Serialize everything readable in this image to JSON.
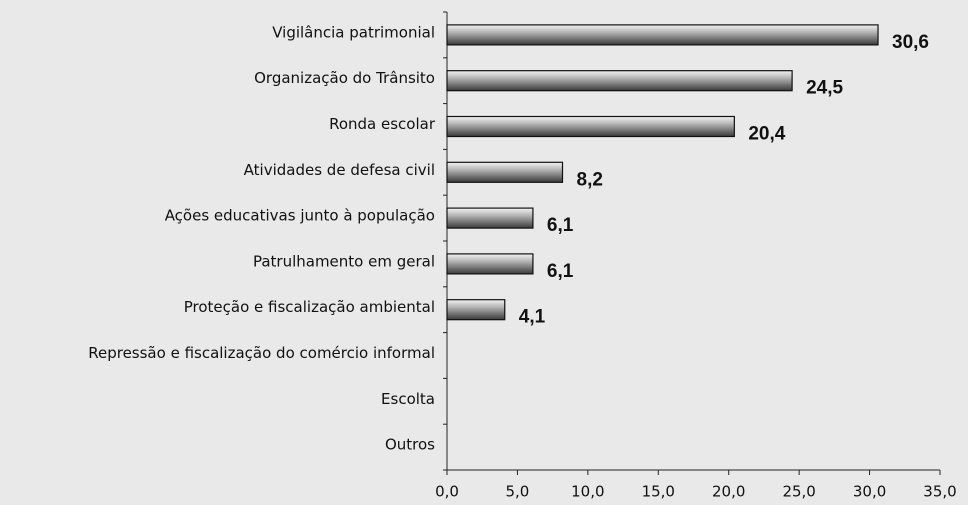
{
  "chart_data": {
    "type": "bar",
    "orientation": "horizontal",
    "categories": [
      "Vigilância patrimonial",
      "Organização do Trânsito",
      "Ronda escolar",
      "Atividades de defesa civil",
      "Ações educativas junto à população",
      "Patrulhamento em geral",
      "Proteção e fiscalização ambiental",
      "Repressão e fiscalização do comércio informal",
      "Escolta",
      "Outros"
    ],
    "values": [
      30.6,
      24.5,
      20.4,
      8.2,
      6.1,
      6.1,
      4.1,
      0,
      0,
      0
    ],
    "value_labels": [
      "30,6",
      "24,5",
      "20,4",
      "8,2",
      "6,1",
      "6,1",
      "4,1",
      null,
      null,
      null
    ],
    "color": "#808080",
    "xlim": [
      0,
      35
    ],
    "xticks": [
      {
        "value": 0,
        "label": "0,0"
      },
      {
        "value": 5,
        "label": "5,0"
      },
      {
        "value": 10,
        "label": "10,0"
      },
      {
        "value": 15,
        "label": "15,0"
      },
      {
        "value": 20,
        "label": "20,0"
      },
      {
        "value": 25,
        "label": "25,0"
      },
      {
        "value": 30,
        "label": "30,0"
      },
      {
        "value": 35,
        "label": "35,0"
      }
    ],
    "grid": false
  }
}
